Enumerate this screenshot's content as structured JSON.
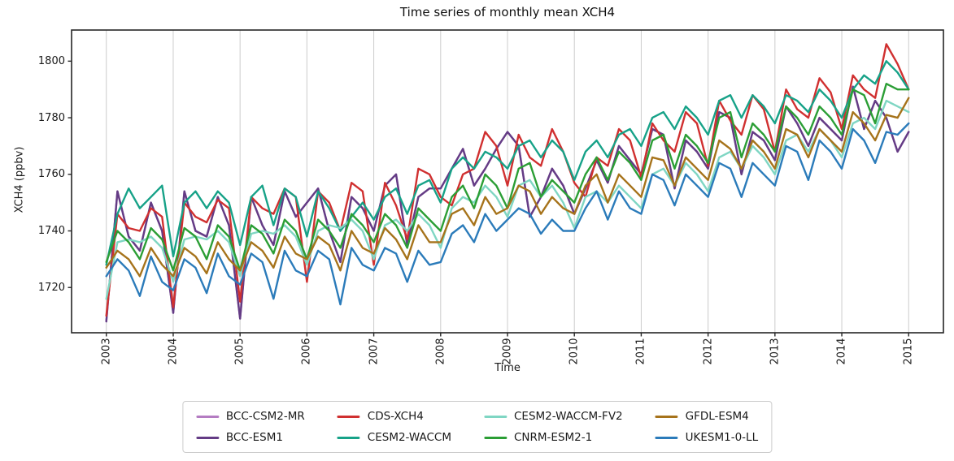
{
  "figure": {
    "title": "Time series of monthly mean XCH4",
    "xlabel": "Time",
    "ylabel": "XCH4 (ppbv)"
  },
  "axes": {
    "xlim": [
      2002.48,
      2015.52
    ],
    "ylim": [
      1704,
      1811
    ],
    "xticks": [
      2003,
      2004,
      2005,
      2006,
      2007,
      2008,
      2009,
      2010,
      2011,
      2012,
      2013,
      2014,
      2015
    ],
    "xtick_labels": [
      "2003",
      "2004",
      "2005",
      "2006",
      "2007",
      "2008",
      "2009",
      "2010",
      "2011",
      "2012",
      "2013",
      "2014",
      "2015"
    ],
    "yticks": [
      1720,
      1740,
      1760,
      1780,
      1800
    ],
    "ytick_labels": [
      "1720",
      "1740",
      "1760",
      "1780",
      "1800"
    ],
    "grid": "vertical-only",
    "grid_color": "#cccccc",
    "spine_color": "#262626"
  },
  "chart_data": {
    "type": "line",
    "title": "Time series of monthly mean XCH4",
    "xlabel": "Time",
    "ylabel": "XCH4 (ppbv)",
    "x_start": 2003.0,
    "x_step_years": 0.1666667,
    "x_end": 2015.0,
    "xlim": [
      2002.48,
      2015.52
    ],
    "ylim": [
      1704,
      1811
    ],
    "grid": "vertical-only",
    "legend_position": "bottom-center",
    "legend_columns": 4,
    "series": [
      {
        "name": "BCC-CSM2-MR",
        "color": "#b47cc2",
        "note": "coincides with BCC-ESM1 (hidden beneath it in the plot)",
        "values": [
          1708,
          1754,
          1738,
          1733,
          1750,
          1740,
          1711,
          1754,
          1740,
          1738,
          1752,
          1742,
          1709,
          1752,
          1742,
          1735,
          1754,
          1745,
          1750,
          1755,
          1740,
          1729,
          1752,
          1748,
          1740,
          1756,
          1760,
          1735,
          1752,
          1755,
          1755,
          1762,
          1769,
          1756,
          1762,
          1769,
          1775,
          1770,
          1745,
          1752,
          1762,
          1756,
          1746,
          1755,
          1765,
          1757,
          1770,
          1765,
          1760,
          1776,
          1774,
          1755,
          1772,
          1768,
          1762,
          1782,
          1780,
          1760,
          1775,
          1772,
          1765,
          1784,
          1778,
          1770,
          1780,
          1776,
          1772,
          1791,
          1776,
          1786,
          1780,
          1768,
          1775
        ]
      },
      {
        "name": "BCC-ESM1",
        "color": "#643c85",
        "values": [
          1708,
          1754,
          1738,
          1733,
          1750,
          1740,
          1711,
          1754,
          1740,
          1738,
          1752,
          1742,
          1709,
          1752,
          1742,
          1735,
          1754,
          1745,
          1750,
          1755,
          1740,
          1729,
          1752,
          1748,
          1740,
          1756,
          1760,
          1735,
          1752,
          1755,
          1755,
          1762,
          1769,
          1756,
          1762,
          1769,
          1775,
          1770,
          1745,
          1752,
          1762,
          1756,
          1746,
          1755,
          1765,
          1757,
          1770,
          1765,
          1760,
          1776,
          1774,
          1755,
          1772,
          1768,
          1762,
          1782,
          1780,
          1760,
          1775,
          1772,
          1765,
          1784,
          1778,
          1770,
          1780,
          1776,
          1772,
          1791,
          1776,
          1786,
          1780,
          1768,
          1775
        ]
      },
      {
        "name": "CDS-XCH4",
        "color": "#d03030",
        "values": [
          1710,
          1746,
          1741,
          1740,
          1748,
          1745,
          1713,
          1750,
          1745,
          1743,
          1751,
          1748,
          1715,
          1752,
          1748,
          1746,
          1755,
          1752,
          1722,
          1754,
          1750,
          1740,
          1757,
          1754,
          1728,
          1757,
          1749,
          1737,
          1762,
          1760,
          1752,
          1749,
          1760,
          1762,
          1775,
          1770,
          1756,
          1774,
          1766,
          1763,
          1776,
          1768,
          1757,
          1752,
          1766,
          1763,
          1776,
          1772,
          1759,
          1778,
          1772,
          1768,
          1782,
          1778,
          1763,
          1786,
          1779,
          1774,
          1788,
          1783,
          1768,
          1790,
          1783,
          1780,
          1794,
          1789,
          1776,
          1795,
          1790,
          1787,
          1806,
          1799,
          1790
        ]
      },
      {
        "name": "CESM2-WACCM",
        "color": "#17a288",
        "values": [
          1728,
          1746,
          1755,
          1748,
          1752,
          1756,
          1731,
          1750,
          1754,
          1748,
          1754,
          1750,
          1735,
          1752,
          1756,
          1742,
          1755,
          1752,
          1738,
          1754,
          1748,
          1740,
          1745,
          1750,
          1744,
          1752,
          1755,
          1746,
          1756,
          1758,
          1750,
          1762,
          1766,
          1762,
          1768,
          1766,
          1762,
          1770,
          1772,
          1766,
          1772,
          1768,
          1758,
          1768,
          1772,
          1766,
          1774,
          1776,
          1770,
          1780,
          1782,
          1776,
          1784,
          1780,
          1774,
          1786,
          1788,
          1780,
          1788,
          1784,
          1778,
          1788,
          1786,
          1782,
          1790,
          1786,
          1780,
          1790,
          1795,
          1792,
          1800,
          1796,
          1790
        ]
      },
      {
        "name": "CESM2-WACCM-FV2",
        "color": "#7fd6c3",
        "values": [
          1716,
          1736,
          1737,
          1736,
          1738,
          1734,
          1722,
          1737,
          1738,
          1737,
          1740,
          1736,
          1724,
          1739,
          1740,
          1739,
          1742,
          1738,
          1728,
          1740,
          1742,
          1741,
          1744,
          1740,
          1730,
          1742,
          1744,
          1740,
          1746,
          1742,
          1734,
          1748,
          1752,
          1750,
          1756,
          1752,
          1745,
          1756,
          1758,
          1752,
          1756,
          1750,
          1741,
          1752,
          1754,
          1750,
          1756,
          1752,
          1748,
          1760,
          1762,
          1756,
          1764,
          1760,
          1754,
          1766,
          1768,
          1762,
          1770,
          1766,
          1760,
          1772,
          1774,
          1768,
          1776,
          1772,
          1766,
          1778,
          1780,
          1776,
          1786,
          1784,
          1782
        ]
      },
      {
        "name": "CNRM-ESM2-1",
        "color": "#2b9e35",
        "values": [
          1729,
          1740,
          1736,
          1730,
          1741,
          1737,
          1726,
          1741,
          1738,
          1730,
          1742,
          1738,
          1726,
          1742,
          1739,
          1732,
          1744,
          1740,
          1730,
          1744,
          1740,
          1734,
          1746,
          1742,
          1736,
          1746,
          1742,
          1734,
          1748,
          1744,
          1740,
          1752,
          1756,
          1748,
          1760,
          1756,
          1748,
          1762,
          1764,
          1752,
          1758,
          1754,
          1750,
          1760,
          1766,
          1758,
          1768,
          1764,
          1758,
          1772,
          1774,
          1762,
          1774,
          1770,
          1764,
          1780,
          1782,
          1766,
          1778,
          1774,
          1768,
          1784,
          1780,
          1774,
          1784,
          1780,
          1774,
          1790,
          1788,
          1778,
          1792,
          1790,
          1790
        ]
      },
      {
        "name": "GFDL-ESM4",
        "color": "#a6731b",
        "values": [
          1727,
          1733,
          1730,
          1724,
          1734,
          1728,
          1724,
          1734,
          1731,
          1725,
          1736,
          1730,
          1726,
          1736,
          1733,
          1727,
          1738,
          1732,
          1730,
          1738,
          1735,
          1726,
          1740,
          1734,
          1732,
          1741,
          1737,
          1730,
          1742,
          1736,
          1736,
          1746,
          1748,
          1742,
          1752,
          1746,
          1748,
          1756,
          1754,
          1746,
          1752,
          1748,
          1746,
          1756,
          1760,
          1750,
          1760,
          1756,
          1752,
          1766,
          1765,
          1756,
          1766,
          1762,
          1758,
          1772,
          1769,
          1762,
          1772,
          1768,
          1762,
          1776,
          1774,
          1766,
          1776,
          1772,
          1768,
          1782,
          1778,
          1772,
          1781,
          1780,
          1787
        ]
      },
      {
        "name": "UKESM1-0-LL",
        "color": "#2b7bba",
        "values": [
          1724,
          1730,
          1726,
          1717,
          1731,
          1722,
          1719,
          1730,
          1727,
          1718,
          1732,
          1724,
          1721,
          1732,
          1729,
          1716,
          1733,
          1726,
          1724,
          1733,
          1730,
          1714,
          1734,
          1728,
          1726,
          1734,
          1732,
          1722,
          1733,
          1728,
          1729,
          1739,
          1742,
          1736,
          1746,
          1740,
          1744,
          1748,
          1746,
          1739,
          1744,
          1740,
          1740,
          1748,
          1754,
          1744,
          1754,
          1748,
          1746,
          1760,
          1758,
          1749,
          1760,
          1756,
          1752,
          1764,
          1762,
          1752,
          1764,
          1760,
          1756,
          1770,
          1768,
          1758,
          1772,
          1768,
          1762,
          1776,
          1772,
          1764,
          1775,
          1774,
          1778
        ]
      }
    ]
  }
}
